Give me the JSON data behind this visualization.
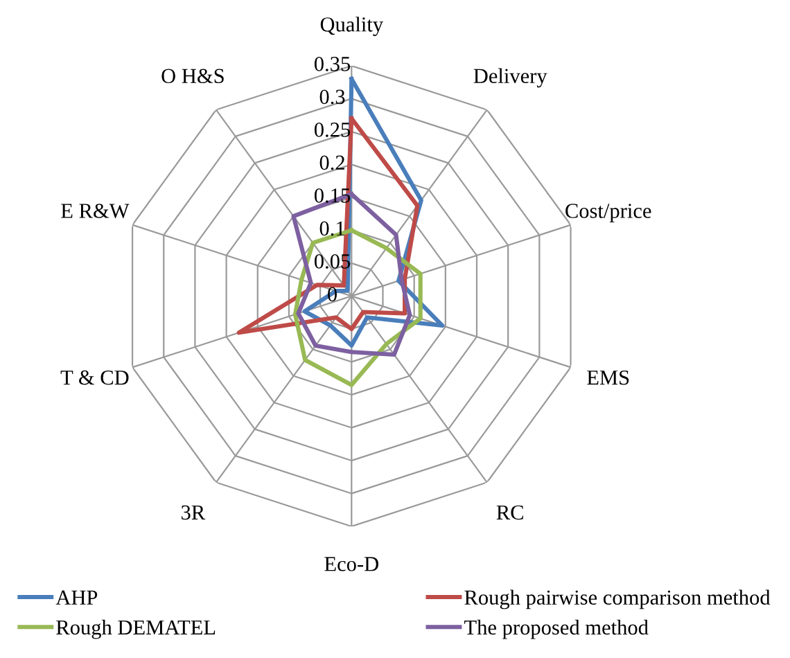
{
  "chart_data": {
    "type": "radar",
    "categories": [
      "Quality",
      "Delivery",
      "Cost/price",
      "EMS",
      "RC",
      "Eco-D",
      "3R",
      "T & CD",
      "E R&W",
      "O H&S"
    ],
    "ylim": [
      0,
      0.35
    ],
    "yticks": [
      0,
      0.05,
      0.1,
      0.15,
      0.2,
      0.25,
      0.3,
      0.35
    ],
    "grid": true,
    "legend": "bottom",
    "series": [
      {
        "name": "AHP",
        "color": "#4a7ebb",
        "values": [
          0.33,
          0.18,
          0.075,
          0.145,
          0.04,
          0.075,
          0.055,
          0.075,
          0.025,
          0.01
        ]
      },
      {
        "name": "Rough pairwise comparison method",
        "color": "#be4b48",
        "values": [
          0.27,
          0.17,
          0.085,
          0.085,
          0.03,
          0.05,
          0.04,
          0.18,
          0.055,
          0.02
        ]
      },
      {
        "name": "Rough DEMATEL",
        "color": "#98b954",
        "values": [
          0.1,
          0.09,
          0.11,
          0.11,
          0.09,
          0.135,
          0.12,
          0.09,
          0.08,
          0.1
        ]
      },
      {
        "name": "The proposed method",
        "color": "#7d60a0",
        "values": [
          0.155,
          0.115,
          0.08,
          0.093,
          0.11,
          0.085,
          0.093,
          0.085,
          0.065,
          0.15
        ]
      }
    ]
  }
}
